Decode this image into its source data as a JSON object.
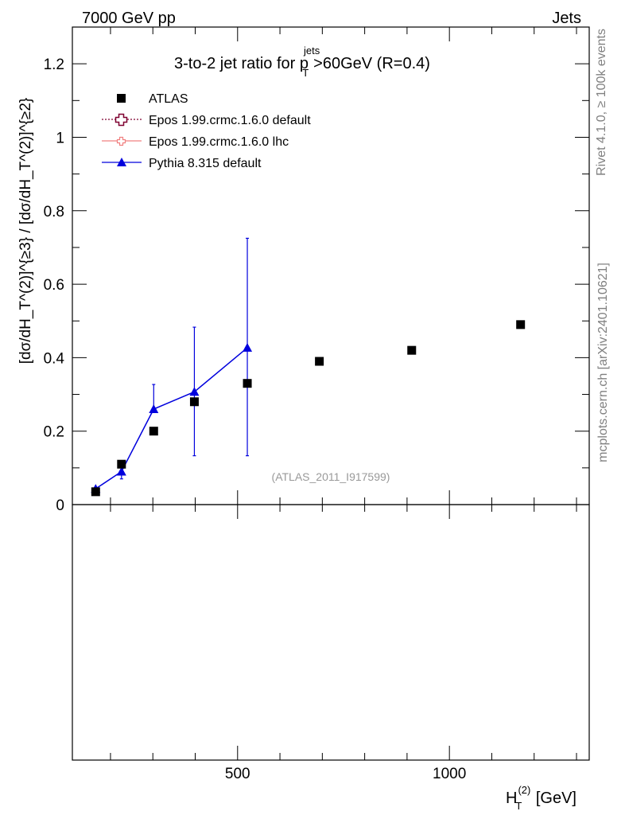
{
  "header": {
    "left": "7000 GeV pp",
    "right": "Jets"
  },
  "side_labels": {
    "rivet": "Rivet 4.1.0, ≥ 100k events",
    "mcplots": "mcplots.cern.ch [arXiv:2401.10621]"
  },
  "chart_data": {
    "type": "line",
    "title": {
      "prefix": "3-to-2 jet ratio for p",
      "sup": "jets",
      "sub": "T",
      "suffix": ">60GeV (R=0.4)"
    },
    "watermark": "(ATLAS_2011_I917599)",
    "xlabel": {
      "main": "H",
      "sub": "T",
      "sup": "(2)",
      "unit": " [GeV]"
    },
    "ylabel": "[dσ/dH_T^(2)]^{≥3} / [dσ/dH_T^(2)]^{≥2}",
    "xlim": [
      110,
      1330
    ],
    "ylim": [
      0,
      1.3
    ],
    "x_ticks": [
      500,
      1000
    ],
    "x_tick_labels": [
      "500",
      "1000"
    ],
    "y_ticks": [
      0,
      0.2,
      0.4,
      0.6,
      0.8,
      1,
      1.2
    ],
    "y_tick_labels": [
      "0",
      "0.2",
      "0.4",
      "0.6",
      "0.8",
      "1",
      "1.2"
    ],
    "grid": false,
    "legend_position": "top-left",
    "legend": [
      {
        "label": "ATLAS",
        "marker": "square",
        "color": "#000000"
      },
      {
        "label": "Epos 1.99.crmc.1.6.0 default",
        "marker": "open-cross",
        "color": "#7f0030"
      },
      {
        "label": "Epos 1.99.crmc.1.6.0 lhc",
        "marker": "open-cross",
        "color": "#f08080"
      },
      {
        "label": "Pythia 8.315 default",
        "marker": "triangle",
        "color": "#0000dd"
      }
    ],
    "series": [
      {
        "name": "ATLAS",
        "style": "markers",
        "color": "#000000",
        "x": [
          165,
          226,
          302,
          398,
          523,
          693,
          911,
          1168
        ],
        "y": [
          0.035,
          0.11,
          0.2,
          0.28,
          0.33,
          0.39,
          0.42,
          0.49
        ]
      },
      {
        "name": "Pythia 8.315 default",
        "style": "line-triangle",
        "color": "#0000dd",
        "x": [
          165,
          226,
          302,
          398,
          523
        ],
        "y": [
          0.043,
          0.09,
          0.26,
          0.307,
          0.427
        ],
        "err_low": [
          0.043,
          0.07,
          0.26,
          0.133,
          0.133
        ],
        "err_high": [
          0.043,
          0.11,
          0.327,
          0.483,
          0.725
        ]
      }
    ]
  }
}
